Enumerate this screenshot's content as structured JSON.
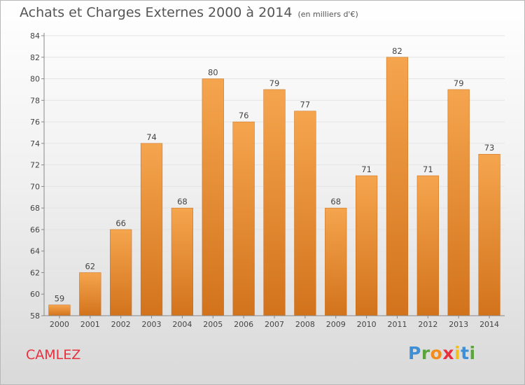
{
  "title": "Achats et Charges Externes 2000 à 2014",
  "subtitle": "(en milliers d'€)",
  "place": "CAMLEZ",
  "logo": {
    "text": "Proxiti",
    "letters": [
      {
        "ch": "P",
        "color": "#3d8fd6"
      },
      {
        "ch": "r",
        "color": "#5aa63c"
      },
      {
        "ch": "o",
        "color": "#f28c1c"
      },
      {
        "ch": "x",
        "color": "#e8303e"
      },
      {
        "ch": "i",
        "color": "#f2c01c"
      },
      {
        "ch": "t",
        "color": "#3d8fd6"
      },
      {
        "ch": "i",
        "color": "#5aa63c"
      }
    ]
  },
  "colors": {
    "bar_top": "#f5a54e",
    "bar_bottom": "#d2731c",
    "bar_stroke": "#c86a16",
    "grid": "#e4e4e4",
    "axis": "#888888",
    "label": "#444444"
  },
  "chart_data": {
    "type": "bar",
    "categories": [
      "2000",
      "2001",
      "2002",
      "2003",
      "2004",
      "2005",
      "2006",
      "2007",
      "2008",
      "2009",
      "2010",
      "2011",
      "2012",
      "2013",
      "2014"
    ],
    "values": [
      59,
      62,
      66,
      74,
      68,
      80,
      76,
      79,
      77,
      68,
      71,
      82,
      71,
      79,
      73
    ],
    "ylim": [
      58,
      84
    ],
    "yticks": [
      58,
      60,
      62,
      64,
      66,
      68,
      70,
      72,
      74,
      76,
      78,
      80,
      82,
      84
    ],
    "grid": true,
    "data_labels": true
  }
}
